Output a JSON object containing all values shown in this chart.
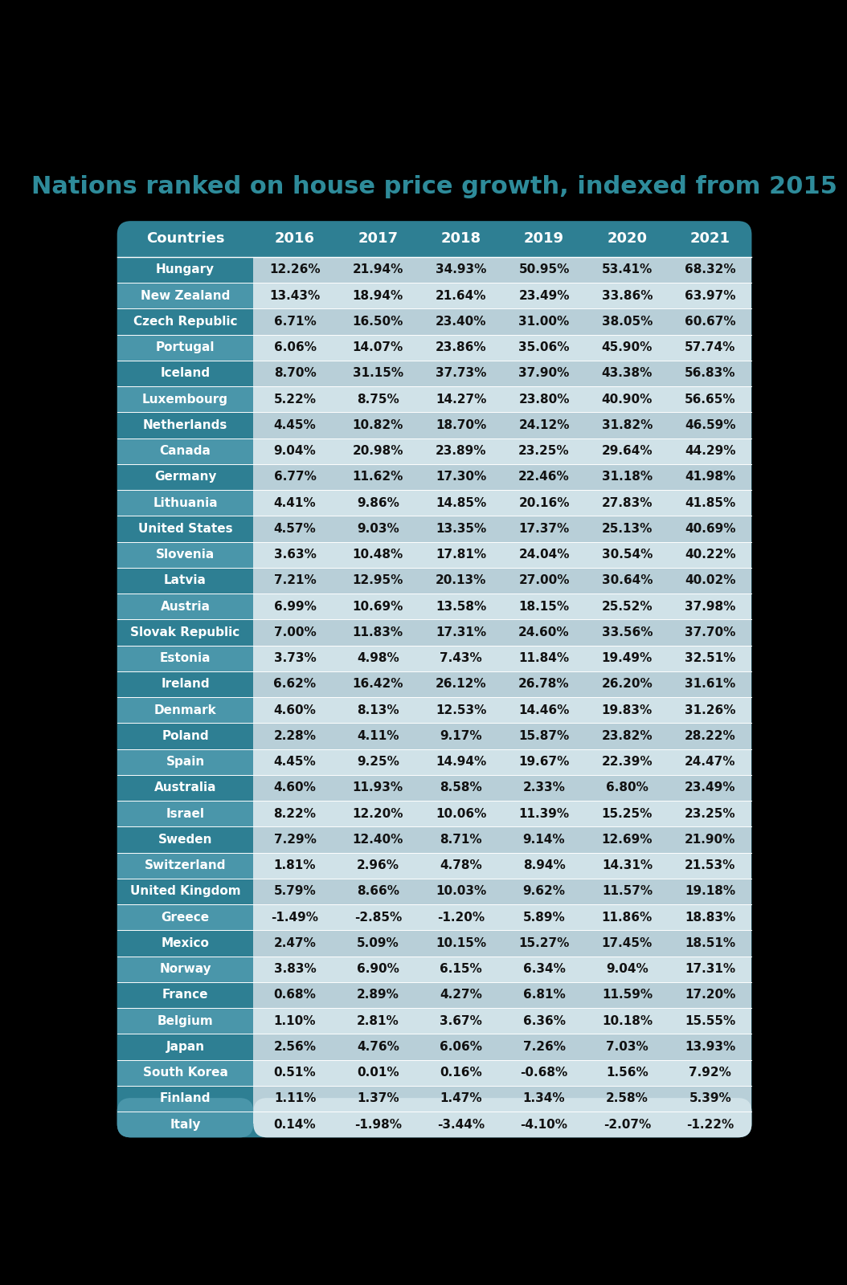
{
  "title": "Nations ranked on house price growth, indexed from 2015",
  "columns": [
    "Countries",
    "2016",
    "2017",
    "2018",
    "2019",
    "2020",
    "2021"
  ],
  "rows": [
    [
      "Hungary",
      "12.26%",
      "21.94%",
      "34.93%",
      "50.95%",
      "53.41%",
      "68.32%"
    ],
    [
      "New Zealand",
      "13.43%",
      "18.94%",
      "21.64%",
      "23.49%",
      "33.86%",
      "63.97%"
    ],
    [
      "Czech Republic",
      "6.71%",
      "16.50%",
      "23.40%",
      "31.00%",
      "38.05%",
      "60.67%"
    ],
    [
      "Portugal",
      "6.06%",
      "14.07%",
      "23.86%",
      "35.06%",
      "45.90%",
      "57.74%"
    ],
    [
      "Iceland",
      "8.70%",
      "31.15%",
      "37.73%",
      "37.90%",
      "43.38%",
      "56.83%"
    ],
    [
      "Luxembourg",
      "5.22%",
      "8.75%",
      "14.27%",
      "23.80%",
      "40.90%",
      "56.65%"
    ],
    [
      "Netherlands",
      "4.45%",
      "10.82%",
      "18.70%",
      "24.12%",
      "31.82%",
      "46.59%"
    ],
    [
      "Canada",
      "9.04%",
      "20.98%",
      "23.89%",
      "23.25%",
      "29.64%",
      "44.29%"
    ],
    [
      "Germany",
      "6.77%",
      "11.62%",
      "17.30%",
      "22.46%",
      "31.18%",
      "41.98%"
    ],
    [
      "Lithuania",
      "4.41%",
      "9.86%",
      "14.85%",
      "20.16%",
      "27.83%",
      "41.85%"
    ],
    [
      "United States",
      "4.57%",
      "9.03%",
      "13.35%",
      "17.37%",
      "25.13%",
      "40.69%"
    ],
    [
      "Slovenia",
      "3.63%",
      "10.48%",
      "17.81%",
      "24.04%",
      "30.54%",
      "40.22%"
    ],
    [
      "Latvia",
      "7.21%",
      "12.95%",
      "20.13%",
      "27.00%",
      "30.64%",
      "40.02%"
    ],
    [
      "Austria",
      "6.99%",
      "10.69%",
      "13.58%",
      "18.15%",
      "25.52%",
      "37.98%"
    ],
    [
      "Slovak Republic",
      "7.00%",
      "11.83%",
      "17.31%",
      "24.60%",
      "33.56%",
      "37.70%"
    ],
    [
      "Estonia",
      "3.73%",
      "4.98%",
      "7.43%",
      "11.84%",
      "19.49%",
      "32.51%"
    ],
    [
      "Ireland",
      "6.62%",
      "16.42%",
      "26.12%",
      "26.78%",
      "26.20%",
      "31.61%"
    ],
    [
      "Denmark",
      "4.60%",
      "8.13%",
      "12.53%",
      "14.46%",
      "19.83%",
      "31.26%"
    ],
    [
      "Poland",
      "2.28%",
      "4.11%",
      "9.17%",
      "15.87%",
      "23.82%",
      "28.22%"
    ],
    [
      "Spain",
      "4.45%",
      "9.25%",
      "14.94%",
      "19.67%",
      "22.39%",
      "24.47%"
    ],
    [
      "Australia",
      "4.60%",
      "11.93%",
      "8.58%",
      "2.33%",
      "6.80%",
      "23.49%"
    ],
    [
      "Israel",
      "8.22%",
      "12.20%",
      "10.06%",
      "11.39%",
      "15.25%",
      "23.25%"
    ],
    [
      "Sweden",
      "7.29%",
      "12.40%",
      "8.71%",
      "9.14%",
      "12.69%",
      "21.90%"
    ],
    [
      "Switzerland",
      "1.81%",
      "2.96%",
      "4.78%",
      "8.94%",
      "14.31%",
      "21.53%"
    ],
    [
      "United Kingdom",
      "5.79%",
      "8.66%",
      "10.03%",
      "9.62%",
      "11.57%",
      "19.18%"
    ],
    [
      "Greece",
      "-1.49%",
      "-2.85%",
      "-1.20%",
      "5.89%",
      "11.86%",
      "18.83%"
    ],
    [
      "Mexico",
      "2.47%",
      "5.09%",
      "10.15%",
      "15.27%",
      "17.45%",
      "18.51%"
    ],
    [
      "Norway",
      "3.83%",
      "6.90%",
      "6.15%",
      "6.34%",
      "9.04%",
      "17.31%"
    ],
    [
      "France",
      "0.68%",
      "2.89%",
      "4.27%",
      "6.81%",
      "11.59%",
      "17.20%"
    ],
    [
      "Belgium",
      "1.10%",
      "2.81%",
      "3.67%",
      "6.36%",
      "10.18%",
      "15.55%"
    ],
    [
      "Japan",
      "2.56%",
      "4.76%",
      "6.06%",
      "7.26%",
      "7.03%",
      "13.93%"
    ],
    [
      "South Korea",
      "0.51%",
      "0.01%",
      "0.16%",
      "-0.68%",
      "1.56%",
      "7.92%"
    ],
    [
      "Finland",
      "1.11%",
      "1.37%",
      "1.47%",
      "1.34%",
      "2.58%",
      "5.39%"
    ],
    [
      "Italy",
      "0.14%",
      "-1.98%",
      "-3.44%",
      "-4.10%",
      "-2.07%",
      "-1.22%"
    ]
  ],
  "bg_color": "#000000",
  "title_color": "#2e8b9a",
  "header_bg": "#2e7f93",
  "header_text_color": "#ffffff",
  "country_dark_bg": "#2e7f93",
  "country_light_bg": "#4a96aa",
  "data_dark_bg": "#b8cfd8",
  "data_light_bg": "#d0e2e8",
  "country_text_color": "#ffffff",
  "data_text_color": "#111111",
  "title_fontsize": 22,
  "header_fontsize": 13,
  "data_fontsize": 11,
  "country_fontsize": 11
}
